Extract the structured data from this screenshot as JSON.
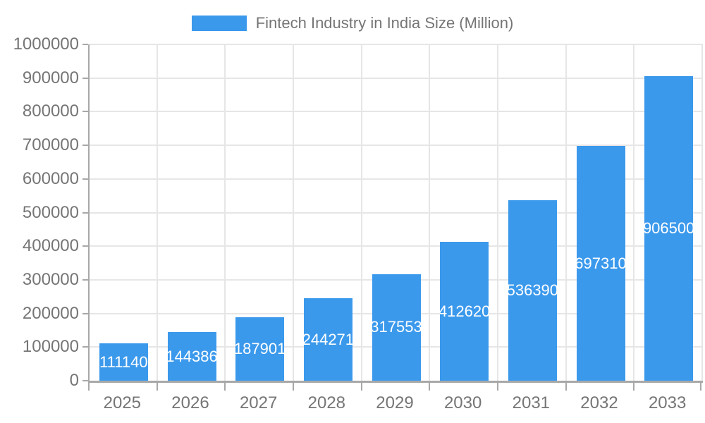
{
  "chart_data": {
    "type": "bar",
    "title": "Fintech Industry in India Size (Million)",
    "legend": {
      "position": "top",
      "entries": [
        "Fintech Industry in India Size (Million)"
      ]
    },
    "categories": [
      "2025",
      "2026",
      "2027",
      "2028",
      "2029",
      "2030",
      "2031",
      "2032",
      "2033"
    ],
    "values": [
      111140,
      144386,
      187901,
      244271,
      317553,
      412620,
      536390,
      697310,
      906500
    ],
    "bar_labels": [
      "111140",
      "144386",
      "187901",
      "244271",
      "317553",
      "412620",
      "536390",
      "697310",
      "906500"
    ],
    "xlabel": "",
    "ylabel": "",
    "ylim": [
      0,
      1000000
    ],
    "ytick_step": 100000,
    "y_ticks": [
      "0",
      "100000",
      "200000",
      "300000",
      "400000",
      "500000",
      "600000",
      "700000",
      "800000",
      "900000",
      "1000000"
    ],
    "grid": true,
    "colors": {
      "bar": "#3b99ec",
      "bar_label_text": "#ffffff",
      "axis_text": "#757575",
      "gridline": "#e6e6e6",
      "axis_line": "#a8a8a8",
      "background": "#ffffff"
    }
  }
}
